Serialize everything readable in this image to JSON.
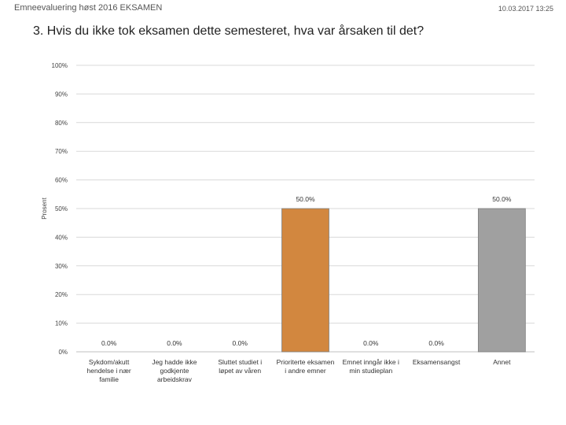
{
  "header": {
    "title": "Emneevaluering høst 2016 EKSAMEN",
    "timestamp": "10.03.2017 13:25"
  },
  "question": "3. Hvis du ikke tok eksamen dette semesteret, hva var årsaken til det?",
  "chart_data": {
    "type": "bar",
    "ylabel": "Prosent",
    "ylim": [
      0,
      100
    ],
    "yticks": [
      "0%",
      "10%",
      "20%",
      "30%",
      "40%",
      "50%",
      "60%",
      "70%",
      "80%",
      "90%",
      "100%"
    ],
    "grid": true,
    "categories": [
      [
        "Sykdom/akutt",
        "hendelse i nær",
        "familie"
      ],
      [
        "Jeg hadde ikke",
        "godkjente",
        "arbeidskrav"
      ],
      [
        "Sluttet studiet i",
        "løpet av våren"
      ],
      [
        "Prioriterte eksamen",
        "i andre emner"
      ],
      [
        "Emnet inngår ikke i",
        "min studieplan"
      ],
      [
        "Eksamensangst"
      ],
      [
        "Annet"
      ]
    ],
    "values": [
      0.0,
      0.0,
      0.0,
      50.0,
      0.0,
      0.0,
      50.0
    ],
    "data_labels": [
      "0.0%",
      "0.0%",
      "0.0%",
      "50.0%",
      "0.0%",
      "0.0%",
      "50.0%"
    ],
    "colors": [
      "#4f81bd",
      "#4f81bd",
      "#4f81bd",
      "#d2873f",
      "#4f81bd",
      "#4f81bd",
      "#a0a0a0"
    ]
  }
}
